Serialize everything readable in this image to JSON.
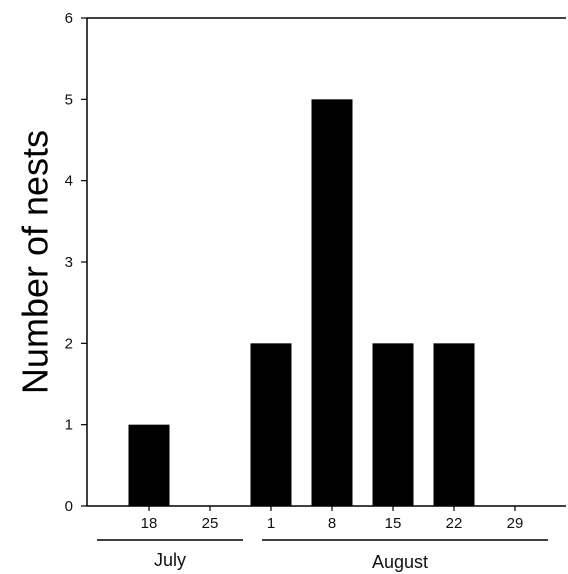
{
  "chart_data": {
    "type": "bar",
    "ylabel": "Number of nests",
    "xlabel": "",
    "ylim": [
      0,
      6
    ],
    "yticks": [
      "0",
      "1",
      "2",
      "3",
      "4",
      "5",
      "6"
    ],
    "categories": [
      "18",
      "25",
      "1",
      "8",
      "15",
      "22",
      "29"
    ],
    "values": [
      1,
      0,
      2,
      5,
      2,
      2,
      0
    ],
    "groups": [
      {
        "label": "July",
        "categories": [
          "18",
          "25"
        ]
      },
      {
        "label": "August",
        "categories": [
          "1",
          "8",
          "15",
          "22",
          "29"
        ]
      }
    ],
    "bar_color": "#000000",
    "grid": false
  }
}
